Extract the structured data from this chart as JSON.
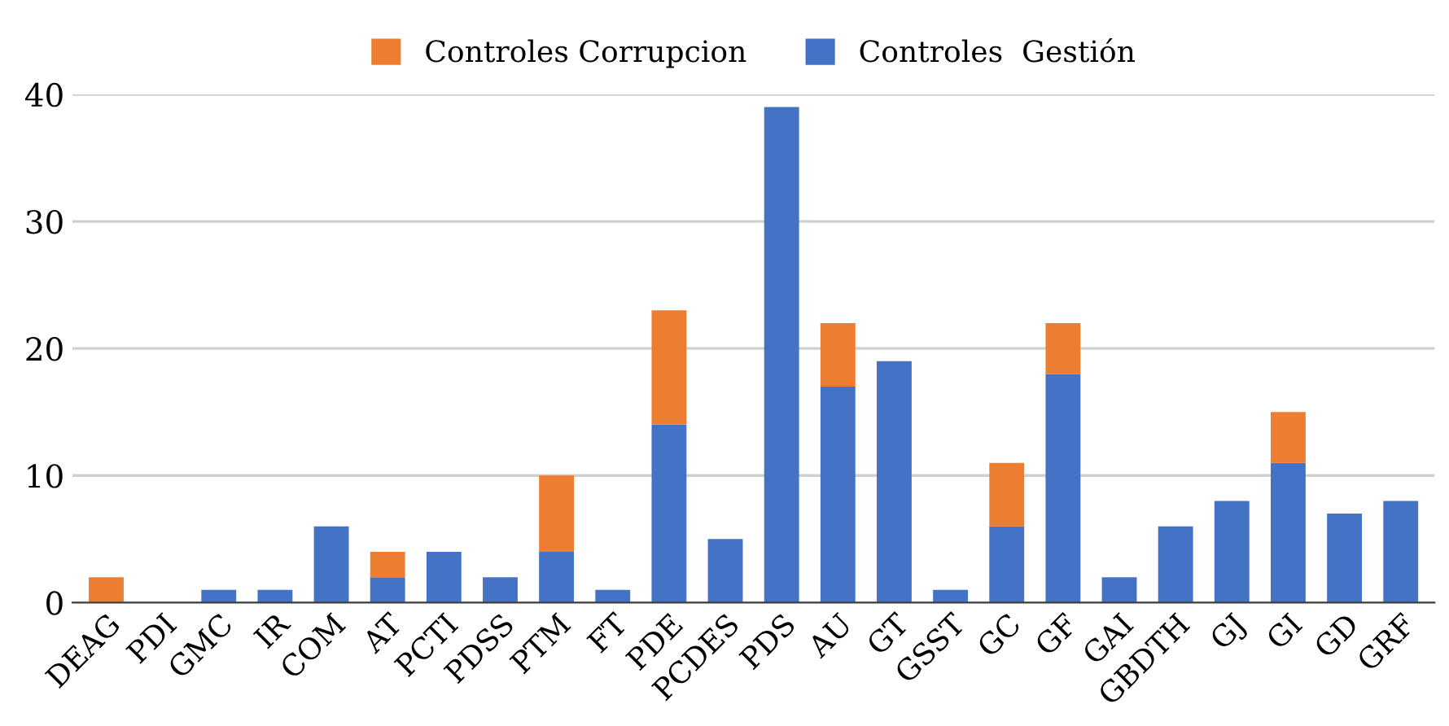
{
  "chart_data": {
    "type": "bar",
    "stacked": true,
    "categories": [
      "DEAG",
      "PDI",
      "GMC",
      "IR",
      "COM",
      "AT",
      "PCTI",
      "PDSS",
      "PTM",
      "FT",
      "PDE",
      "PCDES",
      "PDS",
      "AU",
      "GT",
      "GSST",
      "GC",
      "GF",
      "GAI",
      "GBDTH",
      "GJ",
      "GI",
      "GD",
      "GRF"
    ],
    "series": [
      {
        "name": "Controles  Gestión",
        "color": "#4472c4",
        "values": [
          0,
          0,
          1,
          1,
          6,
          2,
          4,
          2,
          4,
          1,
          14,
          5,
          39,
          17,
          19,
          1,
          6,
          18,
          2,
          6,
          8,
          11,
          7,
          8
        ]
      },
      {
        "name": "Controles Corrupcion",
        "color": "#ed7d31",
        "values": [
          2,
          0,
          0,
          0,
          0,
          2,
          0,
          0,
          6,
          0,
          9,
          0,
          0,
          5,
          0,
          0,
          5,
          4,
          0,
          0,
          0,
          4,
          0,
          0
        ]
      }
    ],
    "ylim": [
      0,
      40
    ],
    "yticks": [
      0,
      10,
      20,
      30,
      40
    ],
    "grid": "y",
    "legend": "top"
  }
}
